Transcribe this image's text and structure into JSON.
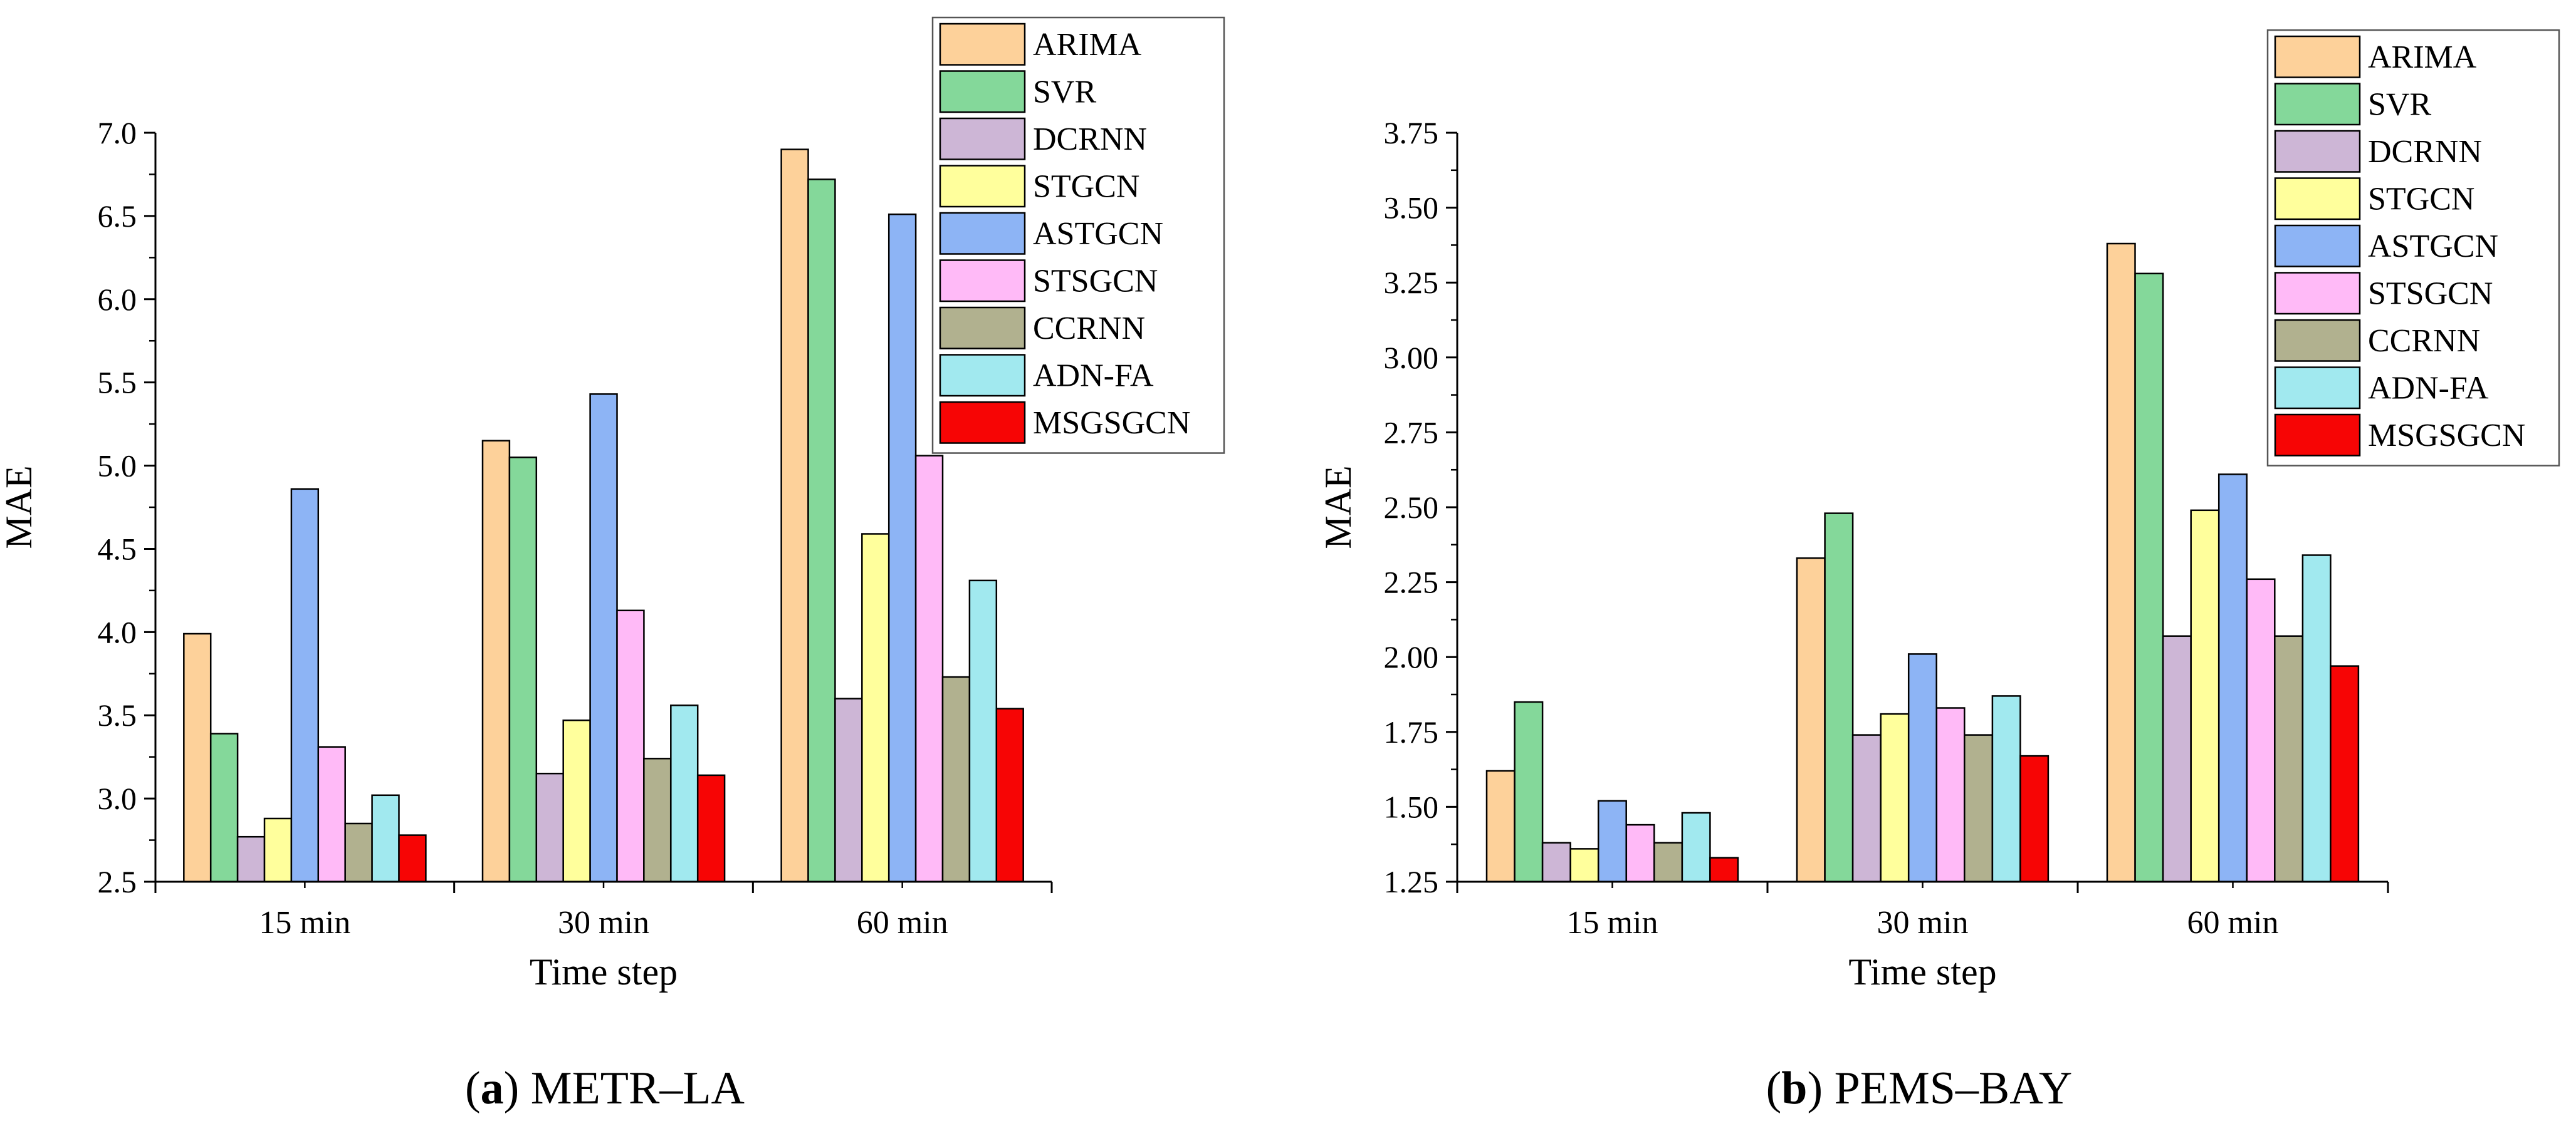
{
  "chart_data": [
    {
      "type": "bar",
      "panel_letter": "a",
      "panel_title": "METR–LA",
      "xlabel": "Time step",
      "ylabel": "MAE",
      "categories": [
        "15 min",
        "30 min",
        "60 min"
      ],
      "ylim": [
        2.5,
        7.0
      ],
      "yticks": [
        "2.5",
        "3.0",
        "3.5",
        "4.0",
        "4.5",
        "5.0",
        "5.5",
        "6.0",
        "6.5",
        "7.0"
      ],
      "legend_position": "top-right",
      "series": [
        {
          "name": "ARIMA",
          "color": "#fdd19a",
          "values": [
            3.99,
            5.15,
            6.9
          ]
        },
        {
          "name": "SVR",
          "color": "#84d89a",
          "values": [
            3.39,
            5.05,
            6.72
          ]
        },
        {
          "name": "DCRNN",
          "color": "#cdb6d6",
          "values": [
            2.77,
            3.15,
            3.6
          ]
        },
        {
          "name": "STGCN",
          "color": "#ffff9c",
          "values": [
            2.88,
            3.47,
            4.59
          ]
        },
        {
          "name": "ASTGCN",
          "color": "#8db4f5",
          "values": [
            4.86,
            5.43,
            6.51
          ]
        },
        {
          "name": "STSGCN",
          "color": "#ffbaf7",
          "values": [
            3.31,
            4.13,
            5.06
          ]
        },
        {
          "name": "CCRNN",
          "color": "#b1b18f",
          "values": [
            2.85,
            3.24,
            3.73
          ]
        },
        {
          "name": "ADN-FA",
          "color": "#a1e9ef",
          "values": [
            3.02,
            3.56,
            4.31
          ]
        },
        {
          "name": "MSGSGCN",
          "color": "#f70505",
          "values": [
            2.78,
            3.14,
            3.54
          ]
        }
      ]
    },
    {
      "type": "bar",
      "panel_letter": "b",
      "panel_title": "PEMS–BAY",
      "xlabel": "Time step",
      "ylabel": "MAE",
      "categories": [
        "15 min",
        "30 min",
        "60 min"
      ],
      "ylim": [
        1.25,
        3.75
      ],
      "yticks": [
        "1.25",
        "1.50",
        "1.75",
        "2.00",
        "2.25",
        "2.50",
        "2.75",
        "3.00",
        "3.25",
        "3.50",
        "3.75"
      ],
      "legend_position": "top-right",
      "series": [
        {
          "name": "ARIMA",
          "color": "#fdd19a",
          "values": [
            1.62,
            2.33,
            3.38
          ]
        },
        {
          "name": "SVR",
          "color": "#84d89a",
          "values": [
            1.85,
            2.48,
            3.28
          ]
        },
        {
          "name": "DCRNN",
          "color": "#cdb6d6",
          "values": [
            1.38,
            1.74,
            2.07
          ]
        },
        {
          "name": "STGCN",
          "color": "#ffff9c",
          "values": [
            1.36,
            1.81,
            2.49
          ]
        },
        {
          "name": "ASTGCN",
          "color": "#8db4f5",
          "values": [
            1.52,
            2.01,
            2.61
          ]
        },
        {
          "name": "STSGCN",
          "color": "#ffbaf7",
          "values": [
            1.44,
            1.83,
            2.26
          ]
        },
        {
          "name": "CCRNN",
          "color": "#b1b18f",
          "values": [
            1.38,
            1.74,
            2.07
          ]
        },
        {
          "name": "ADN-FA",
          "color": "#a1e9ef",
          "values": [
            1.48,
            1.87,
            2.34
          ]
        },
        {
          "name": "MSGSGCN",
          "color": "#f70505",
          "values": [
            1.33,
            1.67,
            1.97
          ]
        }
      ]
    }
  ]
}
